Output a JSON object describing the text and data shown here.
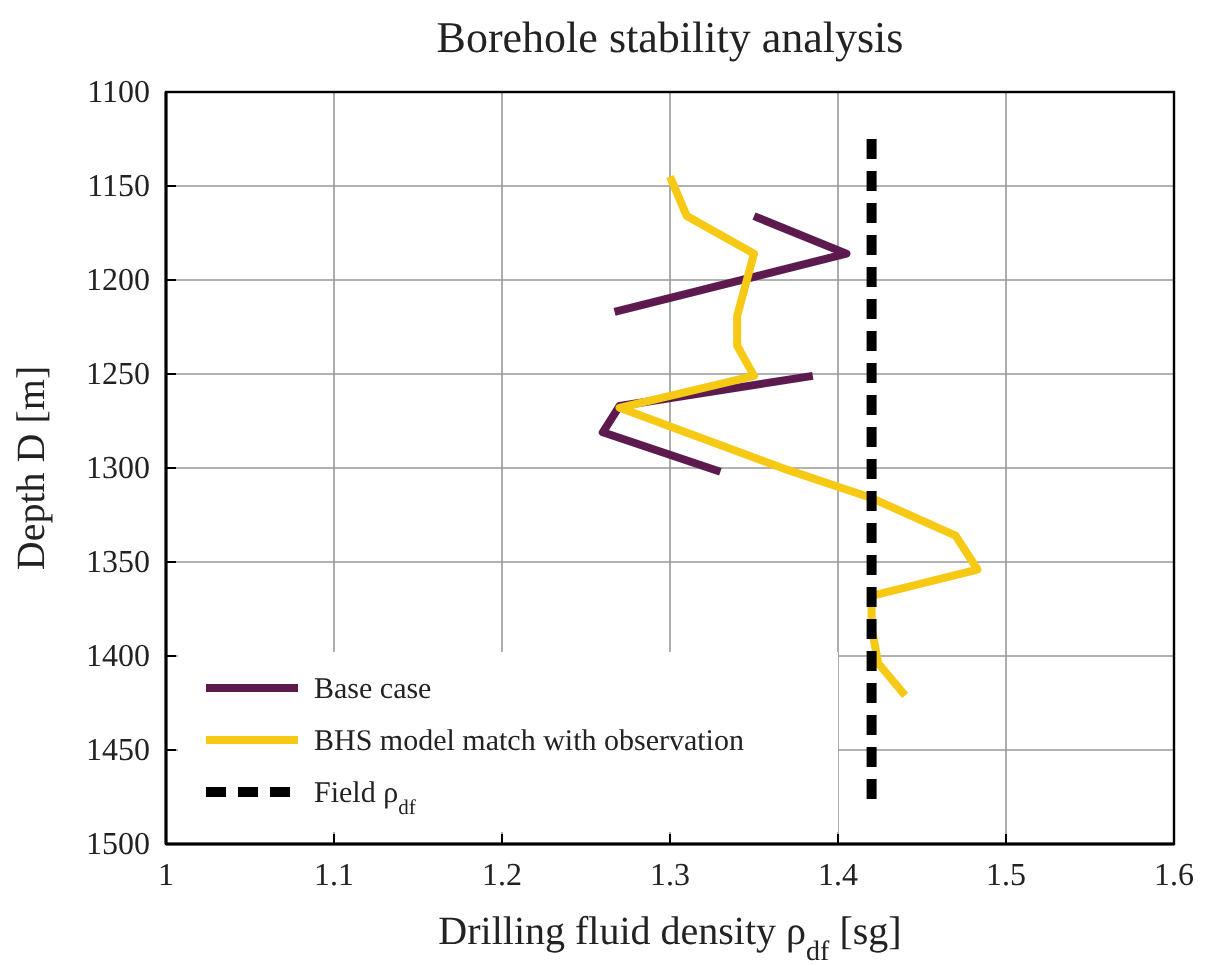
{
  "chart_data": {
    "type": "line",
    "title": "Borehole stability analysis",
    "xlabel": "Drilling fluid density ρ$_{df}$ [sg]",
    "ylabel": "Depth D [m]",
    "xlim": [
      1,
      1.6
    ],
    "xticks": [
      1,
      1.1,
      1.2,
      1.3,
      1.4,
      1.5,
      1.6
    ],
    "ylim": [
      1500,
      1100
    ],
    "yticks": [
      1100,
      1150,
      1200,
      1250,
      1300,
      1350,
      1400,
      1450,
      1500
    ],
    "grid": true,
    "legend": "bottom left",
    "line_style": "solid",
    "series": [
      {
        "name": "Base case",
        "color": "#5c1a4f",
        "x": [
          1.35,
          1.405,
          1.267,
          null,
          1.385,
          1.27,
          1.26,
          1.33
        ],
        "values": [
          1166,
          1186,
          1217,
          null,
          1251,
          1267,
          1281,
          1302
        ]
      },
      {
        "name": "BHS model match with observation",
        "color": "#f6c915",
        "x": [
          1.3,
          1.31,
          1.35,
          1.34,
          1.34,
          1.35,
          1.27,
          1.37,
          1.42,
          1.47,
          1.483,
          1.42,
          1.42,
          1.424,
          1.44
        ],
        "values": [
          1145,
          1166,
          1186,
          1219,
          1235,
          1251,
          1268,
          1301,
          1316,
          1336,
          1354,
          1368,
          1385,
          1404,
          1421
        ]
      },
      {
        "name": "Field ρ$_{df}$",
        "color": "#000000",
        "line_style": "dashed",
        "x": [
          1.42,
          1.42
        ],
        "values": [
          1125,
          1480
        ]
      }
    ]
  }
}
